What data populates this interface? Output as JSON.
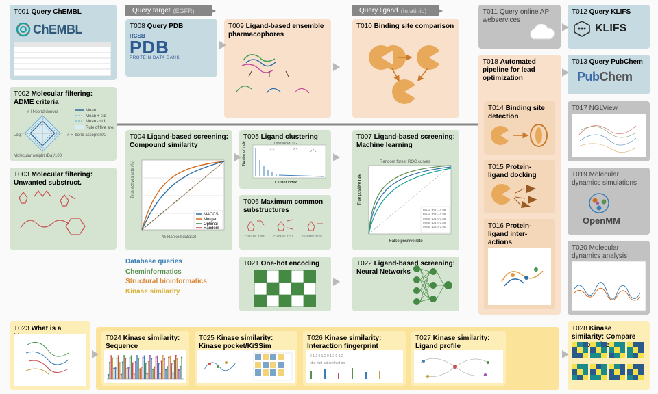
{
  "colors": {
    "blue": "#c6dae2",
    "green": "#d4e4d0",
    "orange": "#f8e0cb",
    "yellow": "#fdeeb8",
    "gray": "#c2c2c2",
    "pill": "#878787",
    "band": "#fbe39a",
    "legend_blue": "#3a7fb8",
    "legend_green": "#5a9050",
    "legend_orange": "#d98a3a",
    "legend_yellow": "#d7b23a"
  },
  "pills": {
    "target": {
      "label": "Query target",
      "sub": "(EGFR)"
    },
    "ligand": {
      "label": "Query ligand",
      "sub": "(Imatinib)"
    }
  },
  "legend": {
    "db": "Database queries",
    "chem": "Cheminformatics",
    "struc": "Structural bioinformatics",
    "kin": "Kinase similarity"
  },
  "cards": {
    "t001": {
      "id": "T001",
      "title": "Query ChEMBL"
    },
    "t002": {
      "id": "T002",
      "title": "Molecular filtering: ADME criteria"
    },
    "t003": {
      "id": "T003",
      "title": "Molecular filtering: Unwanted substruct."
    },
    "t004": {
      "id": "T004",
      "title": "Ligand-based screening: Compound similarity"
    },
    "t005": {
      "id": "T005",
      "title": "Ligand clustering"
    },
    "t006": {
      "id": "T006",
      "title": "Maximum common substructures"
    },
    "t007": {
      "id": "T007",
      "title": "Ligand-based screening: Machine learning"
    },
    "t008": {
      "id": "T008",
      "title": "Query PDB"
    },
    "t009": {
      "id": "T009",
      "title": "Ligand-based ensemble pharmacophores"
    },
    "t010": {
      "id": "T010",
      "title": "Binding site comparison"
    },
    "t011": {
      "id": "T011",
      "title": "Query online API webservices"
    },
    "t012": {
      "id": "T012",
      "title": "Query KLIFS"
    },
    "t013": {
      "id": "T013",
      "title": "Query PubChem"
    },
    "t014": {
      "id": "T014",
      "title": "Binding site detection"
    },
    "t015": {
      "id": "T015",
      "title": "Protein-ligand docking"
    },
    "t016": {
      "id": "T016",
      "title": "Protein-ligand inter-actions"
    },
    "t017": {
      "id": "T017",
      "title": "NGLView"
    },
    "t018": {
      "id": "T018",
      "title": "Automated pipeline for lead optimization"
    },
    "t019": {
      "id": "T019",
      "title": "Molecular dynamics simulations"
    },
    "t020": {
      "id": "T020",
      "title": "Molecular dynamics analysis"
    },
    "t021": {
      "id": "T021",
      "title": "One-hot encoding"
    },
    "t022": {
      "id": "T022",
      "title": "Ligand-based screening: Neural Networks"
    },
    "t023": {
      "id": "T023",
      "title": "What is a kinase?"
    },
    "t024": {
      "id": "T024",
      "title": "Kinase similarity: Sequence"
    },
    "t025": {
      "id": "T025",
      "title": "Kinase similarity: Kinase pocket/KiSSim"
    },
    "t026": {
      "id": "T026",
      "title": "Kinase similarity: Interaction fingerprint"
    },
    "t027": {
      "id": "T027",
      "title": "Kinase similarity: Ligand profile"
    },
    "t028": {
      "id": "T028",
      "title": "Kinase similarity: Compare perspectives"
    }
  },
  "brands": {
    "chembl": "ChEMBL",
    "pdb": {
      "top": "RCSB",
      "mid": "PDB",
      "sub": "PROTEIN DATA BANK"
    },
    "klifs": "KLIFS",
    "pubchem1": "Pub",
    "pubchem2": "Chem",
    "openmm": "OpenMM"
  },
  "adme": {
    "mean": "Mean",
    "pstd": "Mean + std",
    "mstd": "Mean - std",
    "ro5": "Rule of five area",
    "ax1": "# H-bond donors",
    "ax2": "# H-bond acceptors/2",
    "ax3": "LogP",
    "ax4": "Molecular weight (Da)/100"
  },
  "t004_plot": {
    "ylabel": "True actives rate (%)",
    "xlabel": "% Ranked dataset",
    "keys": [
      "MACCS",
      "Morgan",
      "Optimal",
      "Random"
    ],
    "key_colors": [
      "#2e6fa8",
      "#d06a1f",
      "#458945",
      "#c2433c"
    ]
  },
  "t005_plot": {
    "xlabel": "Cluster index",
    "ylabel": "Number of molecules",
    "thres": "Threshold: 0.2"
  },
  "t007_plot": {
    "xlabel": "False positive rate",
    "ylabel": "True positive rate",
    "title": "Random forest ROC curves"
  }
}
